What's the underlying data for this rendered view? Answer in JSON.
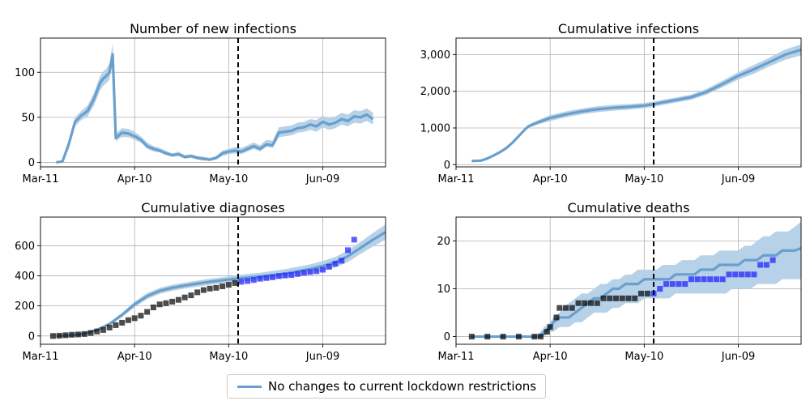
{
  "legend": {
    "label": "No changes to current lockdown restrictions"
  },
  "colors": {
    "line": "#6a9fcb",
    "band": "#b7d1e8",
    "observed_past": "#000000",
    "observed_future": "#1a1aff",
    "vline": "#000000",
    "grid": "#b0b0b0"
  },
  "chart_data": [
    {
      "type": "line",
      "title": "Number of new infections",
      "x_ticks": [
        "Mar-11",
        "Apr-10",
        "May-10",
        "Jun-09"
      ],
      "x_range_days": [
        0,
        110
      ],
      "y_ticks": [
        0,
        50,
        100
      ],
      "y_tick_labels": [
        "0",
        "50",
        "100"
      ],
      "ylim": [
        -5,
        138
      ],
      "vline_day": 63,
      "grid": true,
      "series": [
        {
          "x": [
            5,
            7,
            9,
            11,
            13,
            15,
            17,
            19,
            20,
            21,
            22,
            23,
            24,
            25,
            26,
            28,
            30,
            32,
            34,
            36,
            38,
            40,
            42,
            44,
            46,
            48,
            50,
            52,
            54,
            56,
            58,
            60,
            62,
            64,
            66,
            68,
            70,
            72,
            74,
            76,
            78,
            80,
            82,
            84,
            86,
            88,
            90,
            92,
            94,
            96,
            98,
            100,
            102,
            104,
            106
          ],
          "y": [
            0,
            1,
            20,
            45,
            52,
            57,
            70,
            88,
            93,
            96,
            100,
            120,
            27,
            30,
            33,
            32,
            29,
            25,
            18,
            15,
            13,
            10,
            8,
            9,
            6,
            7,
            5,
            4,
            3,
            5,
            10,
            12,
            13,
            12,
            15,
            18,
            15,
            20,
            19,
            33,
            34,
            35,
            38,
            39,
            42,
            40,
            45,
            42,
            44,
            48,
            46,
            51,
            50,
            53,
            48
          ],
          "low": [
            0,
            0,
            15,
            40,
            47,
            51,
            63,
            80,
            85,
            88,
            92,
            110,
            23,
            26,
            28,
            28,
            25,
            22,
            15,
            12,
            11,
            8,
            6,
            7,
            4,
            5,
            3,
            2,
            2,
            3,
            7,
            9,
            10,
            9,
            12,
            15,
            12,
            17,
            16,
            28,
            29,
            30,
            33,
            34,
            36,
            34,
            39,
            36,
            38,
            42,
            40,
            44,
            43,
            46,
            42
          ],
          "high": [
            0,
            3,
            25,
            50,
            57,
            63,
            77,
            96,
            101,
            104,
            110,
            132,
            32,
            35,
            38,
            37,
            34,
            29,
            22,
            18,
            16,
            13,
            10,
            12,
            8,
            9,
            7,
            6,
            5,
            7,
            13,
            15,
            17,
            16,
            19,
            22,
            19,
            25,
            24,
            39,
            40,
            41,
            44,
            45,
            48,
            47,
            52,
            49,
            51,
            55,
            53,
            58,
            57,
            60,
            55
          ]
        }
      ]
    },
    {
      "type": "line",
      "title": "Cumulative infections",
      "x_ticks": [
        "Mar-11",
        "Apr-10",
        "May-10",
        "Jun-09"
      ],
      "x_range_days": [
        0,
        110
      ],
      "y_ticks": [
        0,
        1000,
        2000,
        3000
      ],
      "y_tick_labels": [
        "0",
        "1,000",
        "2,000",
        "3,000"
      ],
      "ylim": [
        -60,
        3450
      ],
      "vline_day": 63,
      "grid": true,
      "series": [
        {
          "x": [
            5,
            8,
            10,
            12,
            14,
            16,
            18,
            20,
            22,
            23,
            24,
            26,
            28,
            30,
            32,
            35,
            40,
            45,
            50,
            55,
            60,
            63,
            66,
            70,
            75,
            80,
            85,
            90,
            95,
            100,
            105,
            110
          ],
          "y": [
            100,
            110,
            170,
            250,
            340,
            450,
            600,
            780,
            960,
            1040,
            1080,
            1150,
            1210,
            1270,
            1310,
            1370,
            1450,
            1510,
            1550,
            1575,
            1610,
            1650,
            1700,
            1760,
            1840,
            1990,
            2200,
            2420,
            2600,
            2800,
            3000,
            3130
          ],
          "low": [
            100,
            105,
            155,
            230,
            315,
            420,
            560,
            740,
            920,
            1000,
            1030,
            1090,
            1140,
            1190,
            1230,
            1290,
            1370,
            1430,
            1470,
            1500,
            1540,
            1580,
            1630,
            1690,
            1770,
            1910,
            2110,
            2320,
            2480,
            2680,
            2860,
            2980
          ],
          "high": [
            100,
            115,
            185,
            270,
            365,
            480,
            640,
            820,
            1000,
            1080,
            1130,
            1210,
            1280,
            1350,
            1390,
            1450,
            1530,
            1590,
            1630,
            1650,
            1680,
            1720,
            1770,
            1830,
            1910,
            2070,
            2290,
            2520,
            2720,
            2920,
            3140,
            3280
          ]
        }
      ]
    },
    {
      "type": "line",
      "title": "Cumulative diagnoses",
      "x_ticks": [
        "Mar-11",
        "Apr-10",
        "May-10",
        "Jun-09"
      ],
      "x_range_days": [
        0,
        110
      ],
      "y_ticks": [
        0,
        200,
        400,
        600
      ],
      "y_tick_labels": [
        "0",
        "200",
        "400",
        "600"
      ],
      "ylim": [
        -55,
        790
      ],
      "vline_day": 63,
      "grid": true,
      "series": [
        {
          "x": [
            5,
            10,
            14,
            18,
            22,
            26,
            30,
            34,
            38,
            42,
            46,
            50,
            54,
            58,
            62,
            66,
            70,
            74,
            78,
            82,
            86,
            90,
            94,
            98,
            102,
            106,
            110
          ],
          "y": [
            0,
            5,
            15,
            40,
            80,
            140,
            210,
            265,
            300,
            320,
            335,
            348,
            360,
            370,
            380,
            388,
            395,
            405,
            415,
            430,
            445,
            465,
            490,
            530,
            585,
            640,
            690
          ],
          "low": [
            0,
            3,
            12,
            33,
            70,
            126,
            192,
            245,
            280,
            300,
            315,
            328,
            340,
            350,
            358,
            364,
            370,
            378,
            388,
            400,
            414,
            432,
            455,
            492,
            545,
            595,
            640
          ],
          "high": [
            0,
            7,
            18,
            47,
            90,
            154,
            228,
            285,
            320,
            340,
            355,
            368,
            380,
            390,
            402,
            412,
            420,
            432,
            444,
            460,
            476,
            498,
            525,
            568,
            625,
            685,
            740
          ]
        }
      ],
      "observed": {
        "x": [
          4,
          6,
          8,
          10,
          12,
          14,
          16,
          18,
          20,
          22,
          24,
          26,
          28,
          30,
          32,
          34,
          36,
          38,
          40,
          42,
          44,
          46,
          48,
          50,
          52,
          54,
          56,
          58,
          60,
          62,
          64,
          66,
          68,
          70,
          72,
          74,
          76,
          78,
          80,
          82,
          84,
          86,
          88,
          90,
          92,
          94,
          96,
          98,
          100
        ],
        "y": [
          0,
          2,
          5,
          8,
          10,
          13,
          20,
          30,
          40,
          56,
          72,
          88,
          105,
          118,
          135,
          160,
          190,
          210,
          218,
          228,
          240,
          256,
          270,
          290,
          305,
          315,
          320,
          330,
          340,
          352,
          360,
          365,
          372,
          380,
          385,
          390,
          398,
          402,
          405,
          412,
          420,
          425,
          430,
          440,
          460,
          480,
          500,
          570,
          640
        ],
        "projection_start_day": 63
      }
    },
    {
      "type": "line",
      "title": "Cumulative deaths",
      "x_ticks": [
        "Mar-11",
        "Apr-10",
        "May-10",
        "Jun-09"
      ],
      "x_range_days": [
        0,
        110
      ],
      "y_ticks": [
        0,
        10,
        20
      ],
      "y_tick_labels": [
        "0",
        "10",
        "20"
      ],
      "ylim": [
        -1.6,
        25
      ],
      "vline_day": 63,
      "grid": true,
      "series": [
        {
          "x": [
            5,
            10,
            15,
            20,
            25,
            27,
            28,
            30,
            31,
            33,
            34,
            36,
            38,
            40,
            42,
            44,
            46,
            48,
            50,
            52,
            54,
            56,
            58,
            60,
            62,
            64,
            66,
            68,
            70,
            72,
            74,
            76,
            78,
            80,
            82,
            84,
            86,
            88,
            90,
            92,
            94,
            96,
            98,
            100,
            102,
            104,
            106,
            108,
            110
          ],
          "y": [
            0,
            0,
            0,
            0,
            0,
            0,
            1,
            2,
            3,
            4,
            4,
            4,
            5,
            6,
            7,
            8,
            8,
            9,
            10,
            10,
            11,
            11,
            11,
            12,
            12,
            12,
            12,
            12,
            13,
            13,
            13,
            13,
            14,
            14,
            14,
            15,
            15,
            15,
            15,
            16,
            16,
            16,
            17,
            17,
            17,
            18,
            18,
            18,
            18.5
          ],
          "low": [
            0,
            0,
            0,
            0,
            0,
            0,
            0,
            1,
            1,
            2,
            2,
            2,
            3,
            3,
            4,
            5,
            5,
            5,
            6,
            6,
            7,
            7,
            7,
            8,
            8,
            8,
            8,
            8,
            9,
            9,
            9,
            9,
            9,
            9,
            9,
            9,
            9,
            10,
            10,
            10,
            10,
            11,
            11,
            11,
            11,
            12,
            12,
            12,
            12
          ],
          "high": [
            0,
            0,
            0,
            0,
            0,
            1,
            2,
            3,
            4,
            5,
            6,
            7,
            8,
            9,
            9,
            10,
            11,
            11,
            12,
            12,
            13,
            13,
            14,
            14,
            14,
            14,
            15,
            15,
            15,
            16,
            16,
            16,
            17,
            17,
            17,
            18,
            18,
            18,
            18,
            19,
            19,
            20,
            21,
            21,
            22,
            22,
            22,
            23,
            24
          ]
        }
      ],
      "observed": {
        "x": [
          5,
          10,
          15,
          20,
          25,
          27,
          29,
          30,
          32,
          33,
          35,
          37,
          39,
          41,
          43,
          45,
          47,
          49,
          51,
          53,
          55,
          57,
          59,
          61,
          63,
          65,
          67,
          69,
          71,
          73,
          75,
          77,
          79,
          81,
          83,
          85,
          87,
          89,
          91,
          93,
          95,
          97,
          99,
          101
        ],
        "y": [
          0,
          0,
          0,
          0,
          0,
          0,
          1,
          2,
          4,
          6,
          6,
          6,
          7,
          7,
          7,
          7,
          8,
          8,
          8,
          8,
          8,
          8,
          9,
          9,
          9,
          10,
          11,
          11,
          11,
          11,
          12,
          12,
          12,
          12,
          12,
          12,
          13,
          13,
          13,
          13,
          13,
          15,
          15,
          16
        ],
        "projection_start_day": 63
      }
    }
  ]
}
